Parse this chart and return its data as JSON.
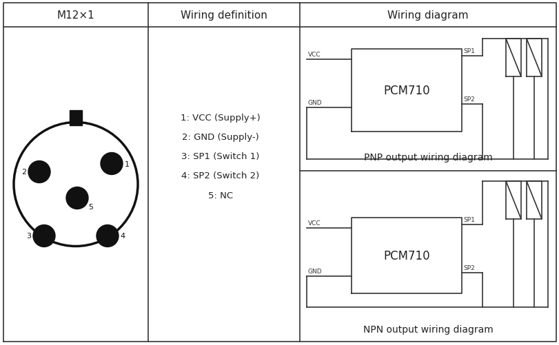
{
  "title_col1": "M12×1",
  "title_col2": "Wiring definition",
  "title_col3": "Wiring diagram",
  "wiring_lines": [
    "1: VCC (Supply+)",
    "2: GND (Supply-)",
    "3: SP1 (Switch 1)",
    "4: SP2 (Switch 2)",
    "5: NC"
  ],
  "pnp_label": "PNP output wiring diagram",
  "npn_label": "NPN output wiring diagram",
  "pcm_label": "PCM710",
  "line_color": "#333333",
  "bg_color": "#ffffff"
}
